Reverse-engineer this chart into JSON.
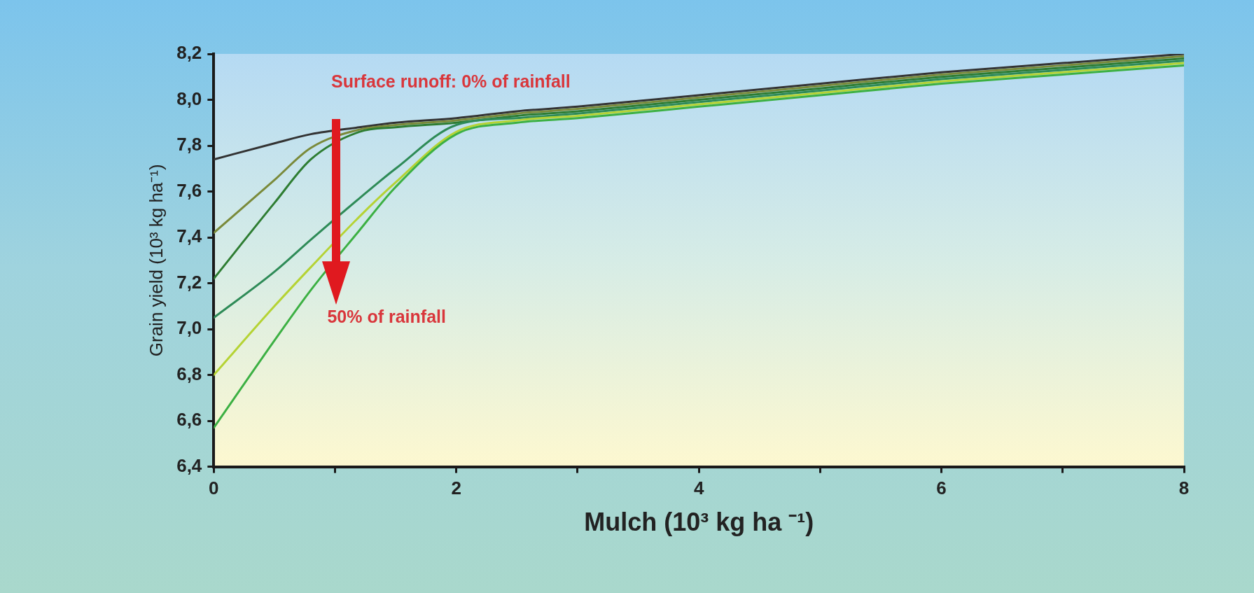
{
  "chart_data": {
    "type": "line",
    "xlabel": "Mulch (10³ kg ha ⁻¹)",
    "ylabel": "Grain yield (10³ kg ha⁻¹)",
    "xlim": [
      0,
      8
    ],
    "xticks": [
      0,
      {
        "value": 1,
        "label": null
      },
      2,
      {
        "value": 3,
        "label": null
      },
      4,
      {
        "value": 5,
        "label": null
      },
      6,
      {
        "value": 7,
        "label": null
      },
      8
    ],
    "ylim": [
      6.4,
      8.2
    ],
    "yticks": [
      {
        "value": 6.4,
        "label": "6,4"
      },
      {
        "value": 6.6,
        "label": "6,6"
      },
      {
        "value": 6.8,
        "label": "6,8"
      },
      {
        "value": 7.0,
        "label": "7,0"
      },
      {
        "value": 7.2,
        "label": "7,2"
      },
      {
        "value": 7.4,
        "label": "7,4"
      },
      {
        "value": 7.6,
        "label": "7,6"
      },
      {
        "value": 7.8,
        "label": "7,8"
      },
      {
        "value": 8.0,
        "label": "8,0"
      },
      {
        "value": 8.2,
        "label": "8,2"
      }
    ],
    "x": [
      0,
      0.5,
      0.8,
      1.2,
      1.5,
      2,
      2.5,
      3,
      4,
      5,
      6,
      7,
      8
    ],
    "series": [
      {
        "color": "#333333",
        "values": [
          7.74,
          7.81,
          7.85,
          7.88,
          7.9,
          7.92,
          7.95,
          7.97,
          8.02,
          8.07,
          8.12,
          8.16,
          8.2
        ]
      },
      {
        "color": "#7a8a3a",
        "values": [
          7.42,
          7.65,
          7.79,
          7.87,
          7.89,
          7.91,
          7.94,
          7.96,
          8.01,
          8.06,
          8.11,
          8.15,
          8.19
        ]
      },
      {
        "color": "#2e7d32",
        "values": [
          7.22,
          7.55,
          7.74,
          7.86,
          7.88,
          7.9,
          7.93,
          7.95,
          8.0,
          8.05,
          8.1,
          8.14,
          8.18
        ]
      },
      {
        "color": "#2e8b57",
        "values": [
          7.05,
          7.25,
          7.39,
          7.57,
          7.7,
          7.89,
          7.92,
          7.94,
          7.99,
          8.04,
          8.09,
          8.13,
          8.17
        ]
      },
      {
        "color": "#b5d334",
        "values": [
          6.8,
          7.1,
          7.27,
          7.49,
          7.64,
          7.86,
          7.91,
          7.93,
          7.98,
          8.03,
          8.08,
          8.12,
          8.16
        ]
      },
      {
        "color": "#3cb043",
        "values": [
          6.57,
          6.95,
          7.17,
          7.43,
          7.62,
          7.85,
          7.9,
          7.92,
          7.97,
          8.02,
          8.07,
          8.11,
          8.15
        ]
      }
    ],
    "annotations": [
      "Surface runoff: 0% of rainfall",
      "50% of rainfall"
    ],
    "legend": false,
    "grid": false,
    "marker": "none",
    "line_style": "solid"
  }
}
